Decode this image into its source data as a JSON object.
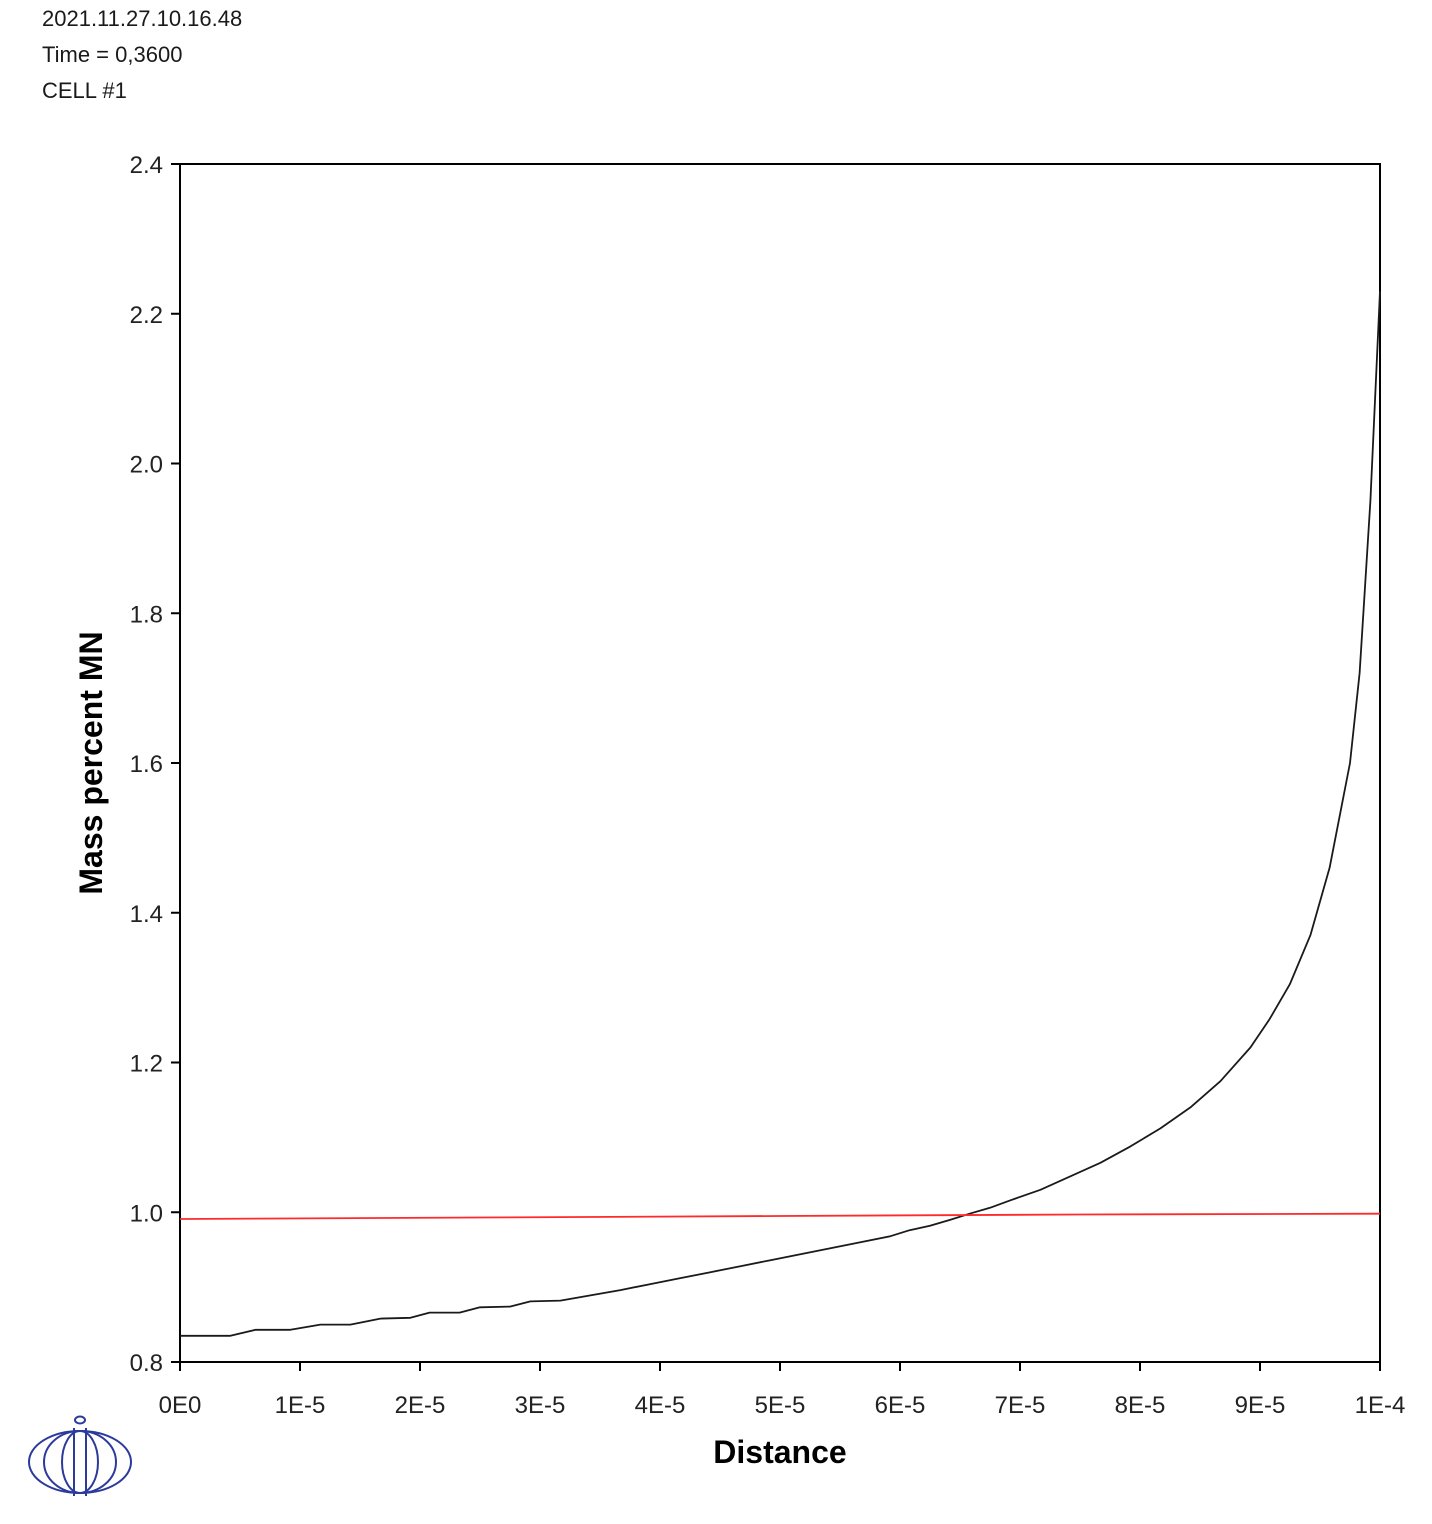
{
  "header": {
    "timestamp": "2021.11.27.10.16.48",
    "time": "Time = 0,3600",
    "cell": "CELL #1"
  },
  "colors": {
    "series_black": "#1a1a1a",
    "series_red": "#ff2a2a",
    "logo": "#2b3a9b"
  },
  "logo": {
    "icon": "thermo-calc-logo-icon"
  },
  "chart_data": {
    "type": "line",
    "title": "",
    "xlabel": "Distance",
    "ylabel": "Mass percent MN",
    "xlim": [
      0,
      0.0001
    ],
    "ylim": [
      0.8,
      2.4
    ],
    "grid": false,
    "x_ticks": [
      0,
      1e-05,
      2e-05,
      3e-05,
      4e-05,
      5e-05,
      6e-05,
      7e-05,
      8e-05,
      9e-05,
      0.0001
    ],
    "x_tick_labels": [
      "0E0",
      "1E-5",
      "2E-5",
      "3E-5",
      "4E-5",
      "5E-5",
      "6E-5",
      "7E-5",
      "8E-5",
      "9E-5",
      "1E-4"
    ],
    "y_ticks": [
      0.8,
      1.0,
      1.2,
      1.4,
      1.6,
      1.8,
      2.0,
      2.2,
      2.4
    ],
    "y_tick_labels": [
      "0.8",
      "1.0",
      "1.2",
      "1.4",
      "1.6",
      "1.8",
      "2.0",
      "2.2",
      "2.4"
    ],
    "series": [
      {
        "color": "#1a1a1a",
        "x": [
          0,
          4.2e-06,
          6.3e-06,
          9.2e-06,
          1.17e-05,
          1.42e-05,
          1.67e-05,
          1.92e-05,
          2.08e-05,
          2.33e-05,
          2.5e-05,
          2.75e-05,
          2.92e-05,
          3.17e-05,
          3.42e-05,
          3.67e-05,
          3.92e-05,
          4.17e-05,
          4.42e-05,
          4.67e-05,
          4.92e-05,
          5.17e-05,
          5.42e-05,
          5.67e-05,
          5.92e-05,
          6.08e-05,
          6.25e-05,
          6.42e-05,
          6.58e-05,
          6.75e-05,
          6.92e-05,
          7.17e-05,
          7.42e-05,
          7.67e-05,
          7.92e-05,
          8.17e-05,
          8.42e-05,
          8.67e-05,
          8.92e-05,
          9.08e-05,
          9.25e-05,
          9.42e-05,
          9.58e-05,
          9.75e-05,
          9.83e-05,
          9.92e-05,
          0.0001
        ],
        "y": [
          0.835,
          0.835,
          0.843,
          0.843,
          0.85,
          0.85,
          0.858,
          0.859,
          0.866,
          0.866,
          0.873,
          0.874,
          0.881,
          0.882,
          0.889,
          0.896,
          0.904,
          0.912,
          0.92,
          0.928,
          0.936,
          0.944,
          0.952,
          0.96,
          0.968,
          0.976,
          0.982,
          0.99,
          0.998,
          1.006,
          1.016,
          1.03,
          1.048,
          1.066,
          1.088,
          1.112,
          1.14,
          1.175,
          1.22,
          1.258,
          1.305,
          1.37,
          1.46,
          1.6,
          1.72,
          1.95,
          2.23
        ]
      },
      {
        "color": "#ff2a2a",
        "x": [
          0,
          2.5e-05,
          5e-05,
          7.5e-05,
          0.0001
        ],
        "y": [
          0.991,
          0.993,
          0.995,
          0.997,
          0.998
        ]
      }
    ]
  }
}
